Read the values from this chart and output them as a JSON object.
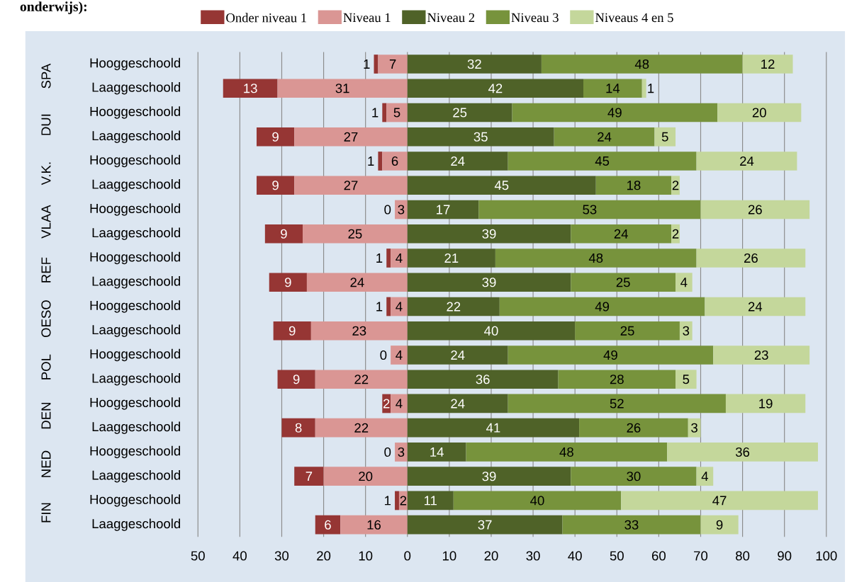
{
  "chart_data": {
    "type": "bar",
    "orientation": "horizontal",
    "title": "onderwijs):",
    "categories": [
      "Hooggeschoold",
      "Laaggeschoold",
      "Hooggeschoold",
      "Laaggeschoold",
      "Hooggeschoold",
      "Laaggeschoold",
      "Hooggeschoold",
      "Laaggeschoold",
      "Hooggeschoold",
      "Laaggeschoold",
      "Hooggeschoold",
      "Laaggeschoold",
      "Hooggeschoold",
      "Laaggeschoold",
      "Hooggeschoold",
      "Laaggeschoold",
      "Hooggeschoold",
      "Laaggeschoold",
      "Hooggeschoold",
      "Laaggeschoold"
    ],
    "annotations": [
      "SPA",
      "DUI",
      "V.K.",
      "VLAA",
      "REF",
      "OESO",
      "POL",
      "DEN",
      "NED",
      "FIN"
    ],
    "series": [
      {
        "name": "Onder niveau 1",
        "color": "#963634",
        "values": [
          1,
          13,
          1,
          9,
          1,
          9,
          0,
          9,
          1,
          9,
          1,
          9,
          0,
          9,
          2,
          8,
          0,
          7,
          1,
          6
        ],
        "base": [
          -8,
          -44,
          -6,
          -36,
          -7,
          -36,
          null,
          -34,
          -5,
          -33,
          -5,
          -32,
          null,
          -31,
          -6,
          -30,
          null,
          -27,
          -3,
          -22
        ],
        "value_labels": [
          "1",
          "13",
          "1",
          "9",
          "1",
          "9",
          "0",
          "9",
          "1",
          "9",
          "1",
          "9",
          "0",
          "9",
          "2",
          "8",
          "0",
          "7",
          "1",
          "6"
        ]
      },
      {
        "name": "Niveau 1",
        "color": "#da9694",
        "values": [
          7,
          31,
          5,
          27,
          6,
          27,
          3,
          25,
          4,
          24,
          4,
          23,
          4,
          22,
          4,
          22,
          3,
          20,
          2,
          16
        ],
        "base": [
          -7,
          -31,
          -5,
          -27,
          -6,
          -27,
          -3,
          -25,
          -4,
          -24,
          -4,
          -23,
          -4,
          -22,
          -4,
          -22,
          -3,
          -20,
          -2,
          -16
        ],
        "value_labels": [
          "7",
          "31",
          "5",
          "27",
          "6",
          "27",
          "3",
          "25",
          "4",
          "24",
          "4",
          "23",
          "4",
          "22",
          "4",
          "22",
          "3",
          "20",
          "2",
          "16"
        ]
      },
      {
        "name": "Niveau 2",
        "color": "#4f6228",
        "values": [
          32,
          42,
          25,
          35,
          24,
          45,
          17,
          39,
          21,
          39,
          22,
          40,
          24,
          36,
          24,
          41,
          14,
          39,
          11,
          37
        ],
        "base": [
          0,
          0,
          0,
          0,
          0,
          0,
          0,
          0,
          0,
          0,
          0,
          0,
          0,
          0,
          0,
          0,
          0,
          0,
          0,
          0
        ],
        "value_labels": [
          "32",
          "42",
          "25",
          "35",
          "24",
          "45",
          "17",
          "39",
          "21",
          "39",
          "22",
          "40",
          "24",
          "36",
          "24",
          "41",
          "14",
          "39",
          "11",
          "37"
        ]
      },
      {
        "name": "Niveau 3",
        "color": "#77933c",
        "values": [
          48,
          14,
          49,
          24,
          45,
          18,
          53,
          24,
          48,
          25,
          49,
          25,
          49,
          28,
          52,
          26,
          48,
          30,
          40,
          33
        ],
        "base": [
          32,
          42,
          25,
          35,
          24,
          45,
          17,
          39,
          21,
          39,
          22,
          40,
          24,
          36,
          24,
          41,
          14,
          39,
          11,
          37
        ],
        "value_labels": [
          "48",
          "14",
          "49",
          "24",
          "45",
          "18",
          "53",
          "24",
          "48",
          "25",
          "49",
          "25",
          "49",
          "28",
          "52",
          "26",
          "48",
          "30",
          "40",
          "33"
        ]
      },
      {
        "name": "Niveaus 4 en 5",
        "color": "#c4d79b",
        "values": [
          12,
          1,
          20,
          5,
          24,
          2,
          26,
          2,
          26,
          4,
          24,
          3,
          23,
          5,
          19,
          3,
          36,
          4,
          47,
          9
        ],
        "base": [
          80,
          56,
          74,
          59,
          69,
          63,
          70,
          63,
          69,
          64,
          71,
          65,
          73,
          64,
          76,
          67,
          62,
          69,
          51,
          70
        ],
        "value_labels": [
          "12",
          "1",
          "20",
          "5",
          "24",
          "2",
          "26",
          "2",
          "26",
          "4",
          "24",
          "3",
          "23",
          "5",
          "19",
          "3",
          "36",
          "4",
          "47",
          "9"
        ]
      }
    ],
    "xlim": [
      -50,
      100
    ],
    "xticks": [
      {
        "value": -50,
        "label": "50"
      },
      {
        "value": -40,
        "label": "40"
      },
      {
        "value": -30,
        "label": "30"
      },
      {
        "value": -20,
        "label": "20"
      },
      {
        "value": -10,
        "label": "10"
      },
      0,
      10,
      20,
      30,
      40,
      50,
      60,
      70,
      80,
      90,
      100
    ],
    "grid": "x",
    "legend": "top"
  }
}
